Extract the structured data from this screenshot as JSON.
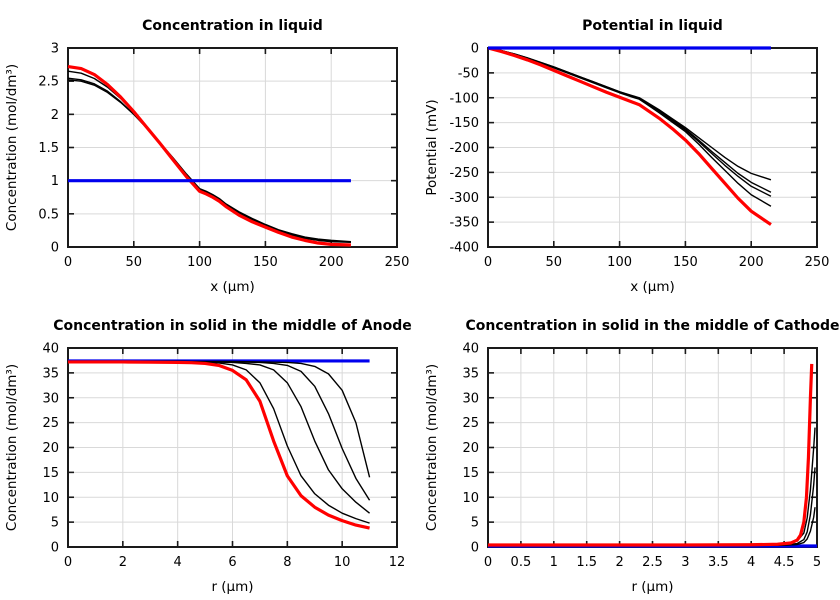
{
  "figure": {
    "background": "#ffffff",
    "layout": "2x2"
  },
  "palette": {
    "red": "#ff0000",
    "blue": "#0000ee",
    "black": "#000000",
    "grid": "#d9d9d9",
    "frame": "#1a1a1a",
    "text": "#000000"
  },
  "chart_data": [
    {
      "id": "concentration-in-liquid",
      "type": "line",
      "title": "Concentration in liquid",
      "xlabel": "x (µm)",
      "ylabel": "Concentration (mol/dm³)",
      "xlim": [
        0,
        250
      ],
      "ylim": [
        0,
        3
      ],
      "xticks": [
        0,
        50,
        100,
        150,
        200,
        250
      ],
      "xtick_labels": [
        "0",
        "50",
        "100",
        "150",
        "200",
        "250"
      ],
      "yticks": [
        0,
        0.5,
        1,
        1.5,
        2,
        2.5,
        3
      ],
      "ytick_labels": [
        "0",
        "0.5",
        "1",
        "1.5",
        "2",
        "2.5",
        "3"
      ],
      "grid": true,
      "legend": "none",
      "series": [
        {
          "name": "time-1-black",
          "color": "black",
          "width": 1.4,
          "x": [
            0,
            10,
            20,
            30,
            40,
            50,
            60,
            70,
            80,
            90,
            100,
            105,
            110,
            115,
            120,
            130,
            140,
            150,
            160,
            170,
            180,
            190,
            200,
            215
          ],
          "y": [
            2.52,
            2.5,
            2.44,
            2.33,
            2.18,
            2.0,
            1.79,
            1.57,
            1.34,
            1.1,
            0.88,
            0.84,
            0.79,
            0.73,
            0.65,
            0.53,
            0.43,
            0.34,
            0.26,
            0.2,
            0.15,
            0.12,
            0.1,
            0.08
          ]
        },
        {
          "name": "time-2-black",
          "color": "black",
          "width": 1.4,
          "x": [
            0,
            10,
            20,
            30,
            40,
            50,
            60,
            70,
            80,
            90,
            100,
            105,
            110,
            115,
            120,
            130,
            140,
            150,
            160,
            170,
            180,
            190,
            200,
            215
          ],
          "y": [
            2.545,
            2.52,
            2.46,
            2.35,
            2.19,
            2.0,
            1.79,
            1.57,
            1.33,
            1.09,
            0.87,
            0.83,
            0.78,
            0.72,
            0.64,
            0.52,
            0.42,
            0.33,
            0.25,
            0.19,
            0.14,
            0.11,
            0.09,
            0.075
          ]
        },
        {
          "name": "time-3-black",
          "color": "black",
          "width": 1.4,
          "x": [
            0,
            10,
            20,
            30,
            40,
            50,
            60,
            70,
            80,
            90,
            100,
            105,
            110,
            115,
            120,
            130,
            140,
            150,
            160,
            170,
            180,
            190,
            200,
            215
          ],
          "y": [
            2.65,
            2.62,
            2.54,
            2.41,
            2.24,
            2.03,
            1.8,
            1.57,
            1.33,
            1.08,
            0.86,
            0.82,
            0.77,
            0.71,
            0.63,
            0.51,
            0.41,
            0.32,
            0.24,
            0.18,
            0.13,
            0.1,
            0.08,
            0.07
          ]
        },
        {
          "name": "final-red",
          "color": "red",
          "width": 3.2,
          "x": [
            0,
            10,
            20,
            30,
            40,
            50,
            60,
            70,
            80,
            90,
            100,
            105,
            110,
            115,
            120,
            130,
            140,
            150,
            160,
            170,
            180,
            190,
            200,
            215
          ],
          "y": [
            2.72,
            2.69,
            2.6,
            2.45,
            2.26,
            2.04,
            1.8,
            1.56,
            1.31,
            1.06,
            0.84,
            0.8,
            0.75,
            0.69,
            0.61,
            0.48,
            0.38,
            0.3,
            0.22,
            0.15,
            0.1,
            0.06,
            0.04,
            0.03
          ]
        },
        {
          "name": "initial-blue",
          "color": "blue",
          "width": 3.2,
          "x": [
            0,
            215
          ],
          "y": [
            1,
            1
          ]
        }
      ]
    },
    {
      "id": "potential-in-liquid",
      "type": "line",
      "title": "Potential in liquid",
      "xlabel": "x (µm)",
      "ylabel": "Potential (mV)",
      "xlim": [
        0,
        250
      ],
      "ylim": [
        -400,
        0
      ],
      "xticks": [
        0,
        50,
        100,
        150,
        200,
        250
      ],
      "xtick_labels": [
        "0",
        "50",
        "100",
        "150",
        "200",
        "250"
      ],
      "yticks": [
        0,
        -50,
        -100,
        -150,
        -200,
        -250,
        -300,
        -350,
        -400
      ],
      "ytick_labels": [
        "0",
        "-50",
        "-100",
        "-150",
        "-200",
        "-250",
        "-300",
        "-350",
        "-400"
      ],
      "grid": true,
      "legend": "none",
      "series": [
        {
          "name": "time-1-black",
          "color": "black",
          "width": 1.4,
          "x": [
            0,
            10,
            20,
            30,
            40,
            50,
            60,
            70,
            80,
            90,
            100,
            110,
            115,
            120,
            130,
            140,
            150,
            160,
            170,
            180,
            190,
            200,
            215
          ],
          "y": [
            0,
            -5,
            -12,
            -20,
            -29,
            -38,
            -48,
            -58,
            -68,
            -78,
            -88,
            -96,
            -100,
            -108,
            -124,
            -142,
            -160,
            -180,
            -200,
            -220,
            -238,
            -252,
            -265
          ]
        },
        {
          "name": "time-2-black",
          "color": "black",
          "width": 1.4,
          "x": [
            0,
            10,
            20,
            30,
            40,
            50,
            60,
            70,
            80,
            90,
            100,
            110,
            115,
            120,
            130,
            140,
            150,
            160,
            170,
            180,
            190,
            200,
            215
          ],
          "y": [
            0,
            -5,
            -12,
            -20,
            -29,
            -38,
            -48,
            -58,
            -68,
            -78,
            -88,
            -97,
            -101,
            -109,
            -126,
            -144,
            -163,
            -185,
            -208,
            -230,
            -252,
            -270,
            -290
          ]
        },
        {
          "name": "time-3-black",
          "color": "black",
          "width": 1.4,
          "x": [
            0,
            10,
            20,
            30,
            40,
            50,
            60,
            70,
            80,
            90,
            100,
            110,
            115,
            120,
            130,
            140,
            150,
            160,
            170,
            180,
            190,
            200,
            215
          ],
          "y": [
            0,
            -5,
            -13,
            -21,
            -30,
            -39,
            -49,
            -59,
            -69,
            -79,
            -89,
            -98,
            -102,
            -110,
            -127,
            -146,
            -165,
            -188,
            -212,
            -236,
            -258,
            -278,
            -298
          ]
        },
        {
          "name": "time-4-black",
          "color": "black",
          "width": 1.4,
          "x": [
            0,
            10,
            20,
            30,
            40,
            50,
            60,
            70,
            80,
            90,
            100,
            110,
            115,
            120,
            130,
            140,
            150,
            160,
            170,
            180,
            190,
            200,
            215
          ],
          "y": [
            0,
            -6,
            -13,
            -21,
            -30,
            -40,
            -50,
            -60,
            -70,
            -80,
            -90,
            -99,
            -103,
            -112,
            -130,
            -149,
            -168,
            -193,
            -220,
            -246,
            -272,
            -295,
            -318
          ]
        },
        {
          "name": "final-red",
          "color": "red",
          "width": 3.2,
          "x": [
            0,
            10,
            20,
            30,
            40,
            50,
            60,
            70,
            80,
            90,
            100,
            110,
            115,
            120,
            130,
            140,
            150,
            160,
            170,
            180,
            190,
            200,
            215
          ],
          "y": [
            0,
            -7,
            -15,
            -24,
            -34,
            -45,
            -56,
            -67,
            -78,
            -89,
            -99,
            -109,
            -114,
            -123,
            -141,
            -162,
            -185,
            -212,
            -242,
            -272,
            -302,
            -328,
            -355
          ]
        },
        {
          "name": "initial-blue",
          "color": "blue",
          "width": 3.2,
          "x": [
            0,
            215
          ],
          "y": [
            0,
            0
          ]
        }
      ]
    },
    {
      "id": "concentration-solid-anode",
      "type": "line",
      "title": "Concentration in solid in the middle of Anode",
      "xlabel": "r (µm)",
      "ylabel": "Concentration (mol/dm³)",
      "xlim": [
        0,
        12
      ],
      "ylim": [
        0,
        40
      ],
      "xticks": [
        0,
        2,
        4,
        6,
        8,
        10,
        12
      ],
      "xtick_labels": [
        "0",
        "2",
        "4",
        "6",
        "8",
        "10",
        "12"
      ],
      "yticks": [
        0,
        5,
        10,
        15,
        20,
        25,
        30,
        35,
        40
      ],
      "ytick_labels": [
        "0",
        "5",
        "10",
        "15",
        "20",
        "25",
        "30",
        "35",
        "40"
      ],
      "grid": true,
      "legend": "none",
      "series": [
        {
          "name": "initial-blue",
          "color": "blue",
          "width": 3.2,
          "x": [
            0,
            11
          ],
          "y": [
            37.4,
            37.4
          ]
        },
        {
          "name": "time-1-black",
          "color": "black",
          "width": 1.4,
          "x": [
            0,
            1,
            2,
            3,
            4,
            4.5,
            5,
            5.5,
            6,
            6.5,
            7,
            7.5,
            8,
            8.5,
            9,
            9.5,
            10,
            10.5,
            11
          ],
          "y": [
            37.35,
            37.35,
            37.35,
            37.35,
            37.35,
            37.3,
            37.3,
            37.3,
            37.3,
            37.25,
            37.2,
            37.15,
            37.1,
            36.9,
            36.3,
            34.8,
            31.5,
            25.0,
            14.0
          ]
        },
        {
          "name": "time-2-black",
          "color": "black",
          "width": 1.4,
          "x": [
            0,
            1,
            2,
            3,
            4,
            4.5,
            5,
            5.5,
            6,
            6.5,
            7,
            7.5,
            8,
            8.5,
            9,
            9.5,
            10,
            10.5,
            11
          ],
          "y": [
            37.3,
            37.3,
            37.3,
            37.3,
            37.3,
            37.25,
            37.25,
            37.2,
            37.2,
            37.15,
            37.1,
            36.9,
            36.5,
            35.3,
            32.3,
            26.8,
            19.8,
            13.8,
            9.4
          ]
        },
        {
          "name": "time-3-black",
          "color": "black",
          "width": 1.4,
          "x": [
            0,
            1,
            2,
            3,
            4,
            4.5,
            5,
            5.5,
            6,
            6.5,
            7,
            7.5,
            8,
            8.5,
            9,
            9.5,
            10,
            10.5,
            11
          ],
          "y": [
            37.3,
            37.3,
            37.3,
            37.3,
            37.25,
            37.2,
            37.2,
            37.15,
            37.1,
            36.9,
            36.6,
            35.6,
            33.0,
            28.2,
            21.3,
            15.5,
            11.7,
            9.0,
            6.8
          ]
        },
        {
          "name": "time-4-black",
          "color": "black",
          "width": 1.4,
          "x": [
            0,
            1,
            2,
            3,
            4,
            4.5,
            5,
            5.5,
            6,
            6.5,
            7,
            7.5,
            8,
            8.5,
            9,
            9.5,
            10,
            10.5,
            11
          ],
          "y": [
            37.25,
            37.25,
            37.25,
            37.2,
            37.2,
            37.15,
            37.1,
            37.0,
            36.6,
            35.6,
            33.0,
            27.8,
            20.3,
            14.3,
            10.7,
            8.4,
            6.8,
            5.7,
            4.8
          ]
        },
        {
          "name": "final-red",
          "color": "red",
          "width": 3.2,
          "x": [
            0,
            1,
            2,
            3,
            4,
            4.5,
            5,
            5.5,
            6,
            6.5,
            7,
            7.5,
            8,
            8.5,
            9,
            9.5,
            10,
            10.5,
            11
          ],
          "y": [
            37.2,
            37.2,
            37.2,
            37.15,
            37.1,
            37.05,
            36.9,
            36.5,
            35.5,
            33.6,
            29.3,
            21.3,
            14.3,
            10.3,
            8.0,
            6.4,
            5.3,
            4.4,
            3.8
          ]
        }
      ]
    },
    {
      "id": "concentration-solid-cathode",
      "type": "line",
      "title": "Concentration in solid in the middle of Cathode",
      "xlabel": "r (µm)",
      "ylabel": "Concentration (mol/dm³)",
      "xlim": [
        0,
        5
      ],
      "ylim": [
        0,
        40
      ],
      "xticks": [
        0,
        0.5,
        1,
        1.5,
        2,
        2.5,
        3,
        3.5,
        4,
        4.5,
        5
      ],
      "xtick_labels": [
        "0",
        "0.5",
        "1",
        "1.5",
        "2",
        "2.5",
        "3",
        "3.5",
        "4",
        "4.5",
        "5"
      ],
      "yticks": [
        0,
        5,
        10,
        15,
        20,
        25,
        30,
        35,
        40
      ],
      "ytick_labels": [
        "0",
        "5",
        "10",
        "15",
        "20",
        "25",
        "30",
        "35",
        "40"
      ],
      "grid": true,
      "legend": "none",
      "series": [
        {
          "name": "initial-blue",
          "color": "blue",
          "width": 3.2,
          "x": [
            0,
            5
          ],
          "y": [
            0.2,
            0.2
          ]
        },
        {
          "name": "time-1-black",
          "color": "black",
          "width": 1.4,
          "x": [
            0,
            1,
            2,
            3,
            4,
            4.5,
            4.7,
            4.8,
            4.85,
            4.9,
            4.95,
            4.97
          ],
          "y": [
            0.3,
            0.3,
            0.3,
            0.3,
            0.3,
            0.35,
            0.5,
            0.9,
            1.6,
            3.2,
            6.0,
            8.0
          ]
        },
        {
          "name": "time-2-black",
          "color": "black",
          "width": 1.4,
          "x": [
            0,
            1,
            2,
            3,
            4,
            4.5,
            4.7,
            4.8,
            4.85,
            4.9,
            4.95,
            4.97
          ],
          "y": [
            0.3,
            0.3,
            0.3,
            0.3,
            0.35,
            0.45,
            0.7,
            1.5,
            3.0,
            6.5,
            12.5,
            16.0
          ]
        },
        {
          "name": "time-3-black",
          "color": "black",
          "width": 1.4,
          "x": [
            0,
            1,
            2,
            3,
            4,
            4.5,
            4.7,
            4.8,
            4.85,
            4.9,
            4.95,
            4.97
          ],
          "y": [
            0.3,
            0.3,
            0.3,
            0.3,
            0.4,
            0.6,
            1.2,
            2.8,
            5.8,
            11.5,
            20.0,
            24.0
          ]
        },
        {
          "name": "final-red",
          "color": "red",
          "width": 3.2,
          "x": [
            0,
            1,
            2,
            3,
            4,
            4.4,
            4.6,
            4.7,
            4.75,
            4.8,
            4.84,
            4.87,
            4.9,
            4.92
          ],
          "y": [
            0.4,
            0.4,
            0.4,
            0.4,
            0.45,
            0.55,
            0.8,
            1.4,
            2.4,
            5.0,
            10.0,
            18.0,
            30.0,
            36.8
          ]
        }
      ]
    }
  ]
}
